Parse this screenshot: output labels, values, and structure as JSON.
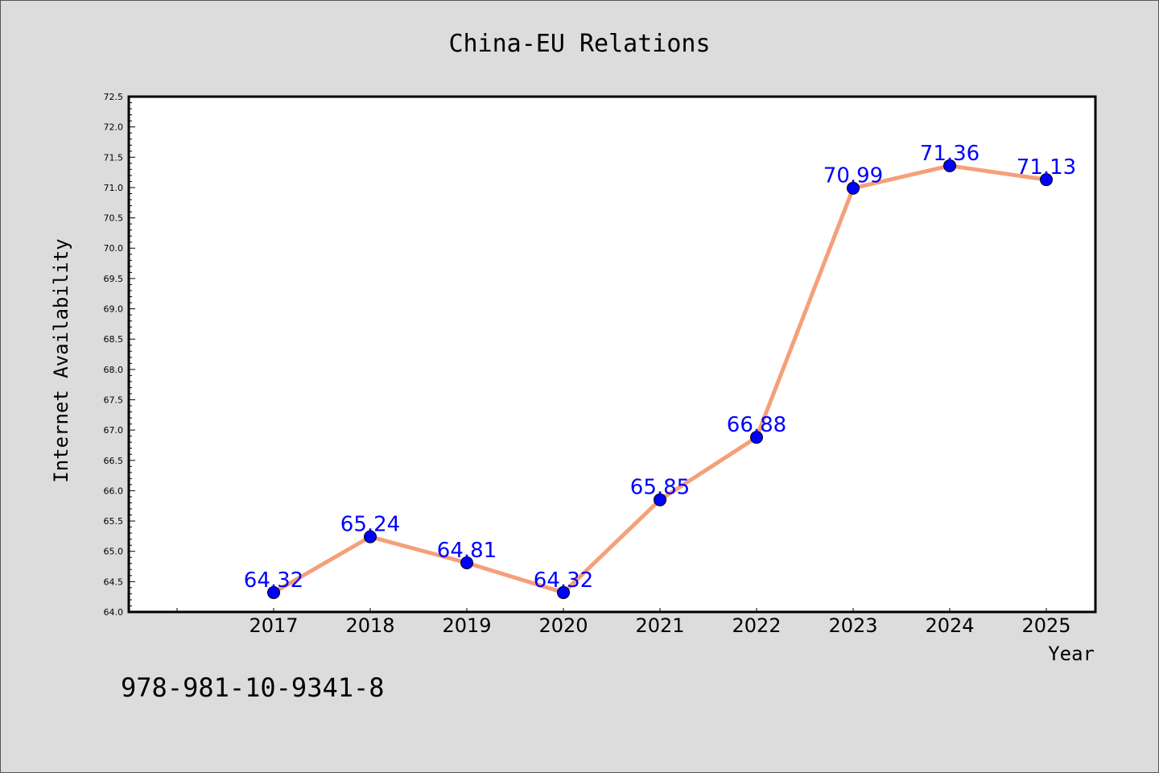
{
  "chart_data": {
    "type": "line",
    "title": "China-EU Relations",
    "xlabel": "Year",
    "ylabel": "Internet Availability",
    "x": [
      "2017",
      "2018",
      "2019",
      "2020",
      "2021",
      "2022",
      "2023",
      "2024",
      "2025"
    ],
    "series": [
      {
        "values": [
          64.32,
          65.24,
          64.81,
          64.32,
          65.85,
          66.88,
          70.99,
          71.36,
          71.13
        ],
        "data_labels": [
          "64.32",
          "65.24",
          "64.81",
          "64.32",
          "65.85",
          "66.88",
          "70.99",
          "71.36",
          "71.13"
        ],
        "line_color": "#f4a07a",
        "marker_color": "#0000ff"
      }
    ],
    "ylim": [
      64.0,
      72.5
    ],
    "yticks": [
      "64.0",
      "64.5",
      "65.0",
      "65.5",
      "66.0",
      "66.5",
      "67.0",
      "67.5",
      "68.0",
      "68.5",
      "69.0",
      "69.5",
      "70.0",
      "70.5",
      "71.0",
      "71.5",
      "72.0",
      "72.5"
    ],
    "grid": false,
    "legend": "none"
  },
  "footnote": "978-981-10-9341-8",
  "colors": {
    "background": "#dcdcdc",
    "plot_area": "#ffffff",
    "data_label": "#0000ff"
  }
}
